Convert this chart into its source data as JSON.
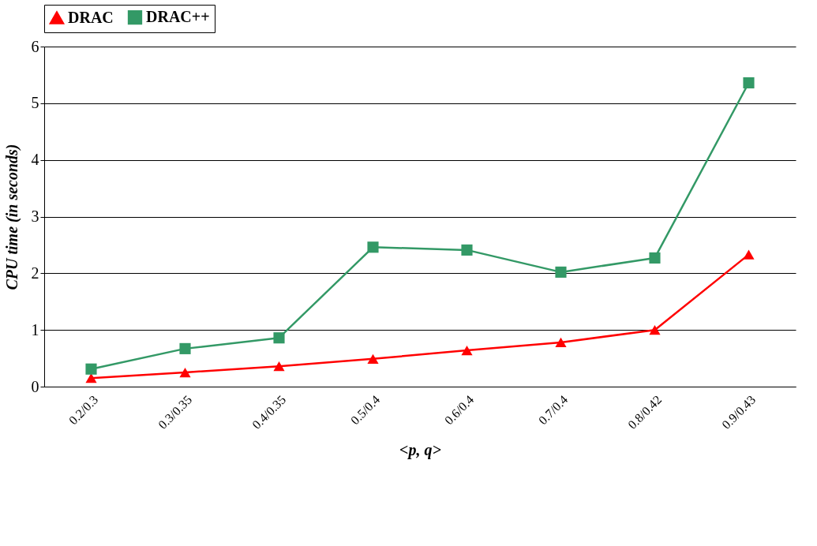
{
  "chart_data": {
    "type": "line",
    "xlabel": "<p, q>",
    "ylabel": "CPU time (in seconds)",
    "categories": [
      "0.2/0.3",
      "0.3/0.35",
      "0.4/0.35",
      "0.5/0.4",
      "0.6/0.4",
      "0.7/0.4",
      "0.8/0.42",
      "0.9/0.43"
    ],
    "series": [
      {
        "name": "DRAC",
        "color": "#ff0000",
        "marker": "triangle",
        "values": [
          0.15,
          0.25,
          0.36,
          0.49,
          0.64,
          0.78,
          1.0,
          2.33
        ]
      },
      {
        "name": "DRAC++",
        "color": "#339966",
        "marker": "square",
        "values": [
          0.31,
          0.67,
          0.86,
          2.46,
          2.41,
          2.02,
          2.27,
          5.36
        ]
      }
    ],
    "ylim": [
      0,
      6
    ],
    "yticks": [
      0,
      1,
      2,
      3,
      4,
      5,
      6
    ],
    "grid": "y",
    "legend": "top",
    "line_style": "solid"
  }
}
